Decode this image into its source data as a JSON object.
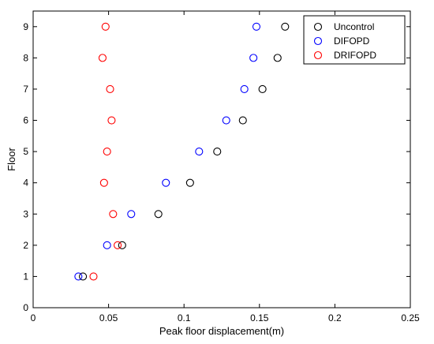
{
  "chart_data": {
    "type": "scatter",
    "title": "",
    "xlabel": "Peak floor displacement(m)",
    "ylabel": "Floor",
    "xlim": [
      0,
      0.25
    ],
    "ylim": [
      0,
      9.5
    ],
    "xticks": [
      "0",
      "0.05",
      "0.1",
      "0.15",
      "0.2",
      "0.25"
    ],
    "yticks": [
      "0",
      "1",
      "2",
      "3",
      "4",
      "5",
      "6",
      "7",
      "8",
      "9"
    ],
    "grid": false,
    "legend_position": "top-right",
    "series": [
      {
        "name": "Uncontrol",
        "color": "#000000",
        "marker": "open-circle",
        "points": [
          {
            "x": 0.033,
            "y": 1
          },
          {
            "x": 0.059,
            "y": 2
          },
          {
            "x": 0.083,
            "y": 3
          },
          {
            "x": 0.104,
            "y": 4
          },
          {
            "x": 0.122,
            "y": 5
          },
          {
            "x": 0.139,
            "y": 6
          },
          {
            "x": 0.152,
            "y": 7
          },
          {
            "x": 0.162,
            "y": 8
          },
          {
            "x": 0.167,
            "y": 9
          }
        ]
      },
      {
        "name": "DIFOPD",
        "color": "#0000ff",
        "marker": "open-circle",
        "points": [
          {
            "x": 0.03,
            "y": 1
          },
          {
            "x": 0.049,
            "y": 2
          },
          {
            "x": 0.065,
            "y": 3
          },
          {
            "x": 0.088,
            "y": 4
          },
          {
            "x": 0.11,
            "y": 5
          },
          {
            "x": 0.128,
            "y": 6
          },
          {
            "x": 0.14,
            "y": 7
          },
          {
            "x": 0.146,
            "y": 8
          },
          {
            "x": 0.148,
            "y": 9
          }
        ]
      },
      {
        "name": "DRIFOPD",
        "color": "#ff0000",
        "marker": "open-circle",
        "points": [
          {
            "x": 0.04,
            "y": 1
          },
          {
            "x": 0.056,
            "y": 2
          },
          {
            "x": 0.053,
            "y": 3
          },
          {
            "x": 0.047,
            "y": 4
          },
          {
            "x": 0.049,
            "y": 5
          },
          {
            "x": 0.052,
            "y": 6
          },
          {
            "x": 0.051,
            "y": 7
          },
          {
            "x": 0.046,
            "y": 8
          },
          {
            "x": 0.048,
            "y": 9
          }
        ]
      }
    ]
  }
}
